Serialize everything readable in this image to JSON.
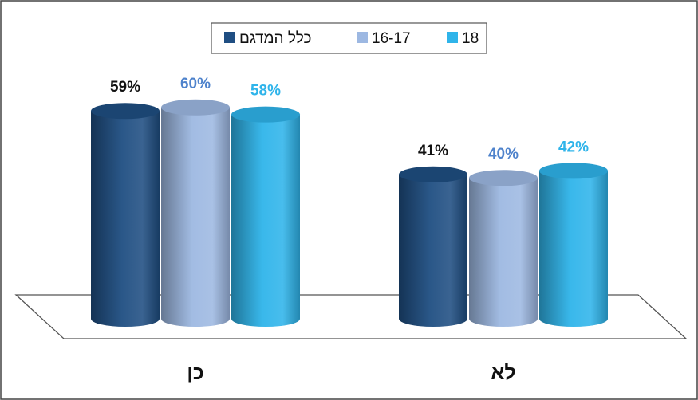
{
  "chart_data": {
    "type": "bar",
    "style": "3d-cylinder",
    "categories": [
      "כן",
      "לא"
    ],
    "series": [
      {
        "name": "כלל המדגם",
        "values": [
          59,
          41
        ],
        "color": "#1f4e82",
        "label_color": "#111111"
      },
      {
        "name": "16-17",
        "values": [
          60,
          40
        ],
        "color": "#9db8e2",
        "label_color": "#4f83cc"
      },
      {
        "name": "18",
        "values": [
          58,
          42
        ],
        "color": "#2fb4ea",
        "label_color": "#2fb4ea"
      }
    ],
    "value_suffix": "%",
    "ylim": [
      0,
      70
    ],
    "legend_position": "top-center",
    "grid": false,
    "border_color": "#444444"
  }
}
